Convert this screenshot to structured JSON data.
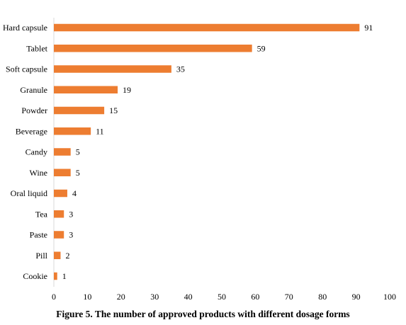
{
  "chart_data": {
    "type": "bar",
    "orientation": "horizontal",
    "categories": [
      "Hard capsule",
      "Tablet",
      "Soft capsule",
      "Granule",
      "Powder",
      "Beverage",
      "Candy",
      "Wine",
      "Oral liquid",
      "Tea",
      "Paste",
      "Pill",
      "Cookie"
    ],
    "values": [
      91,
      59,
      35,
      19,
      15,
      11,
      5,
      5,
      4,
      3,
      3,
      2,
      1
    ],
    "data_labels": [
      "91",
      "59",
      "35",
      "19",
      "15",
      "11",
      "5",
      "5",
      "4",
      "3",
      "3",
      "2",
      "1"
    ],
    "xlim": [
      0,
      100
    ],
    "xticks": [
      0,
      10,
      20,
      30,
      40,
      50,
      60,
      70,
      80,
      90,
      100
    ],
    "xtick_labels": [
      "0",
      "10",
      "20",
      "30",
      "40",
      "50",
      "60",
      "70",
      "80",
      "90",
      "100"
    ],
    "title": "",
    "xlabel": "",
    "ylabel": "",
    "grid": false,
    "bar_color": "#ed7d31"
  },
  "caption": "Figure 5. The number of approved products with different dosage forms"
}
